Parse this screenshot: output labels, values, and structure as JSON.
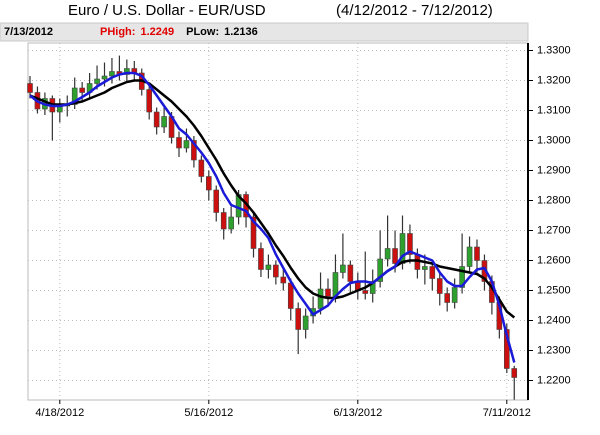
{
  "chart_data": {
    "type": "candlestick",
    "title": "Euro / U.S. Dollar -  EUR/USD",
    "date_range": "(4/12/2012 - 7/12/2012)",
    "info": {
      "date": "7/13/2012",
      "items": [
        {
          "label": "PHigh:",
          "value": "1.2249",
          "color": "#e00000"
        },
        {
          "label": "PLow:",
          "value": "1.2136",
          "color": "#000000"
        }
      ]
    },
    "categories": [
      null,
      null,
      null,
      null,
      "4/18/2012",
      null,
      null,
      null,
      null,
      null,
      null,
      null,
      null,
      null,
      null,
      null,
      null,
      null,
      null,
      null,
      null,
      null,
      null,
      null,
      "5/16/2012",
      null,
      null,
      null,
      null,
      null,
      null,
      null,
      null,
      null,
      null,
      null,
      null,
      null,
      null,
      null,
      null,
      null,
      null,
      null,
      "6/13/2012",
      null,
      null,
      null,
      null,
      null,
      null,
      null,
      null,
      null,
      null,
      null,
      null,
      null,
      null,
      null,
      null,
      null,
      null,
      null,
      "7/11/2012",
      null
    ],
    "open": [
      1.319,
      1.316,
      1.3105,
      1.314,
      1.3095,
      1.3115,
      1.312,
      1.3175,
      1.316,
      1.319,
      1.3205,
      1.3215,
      1.323,
      1.322,
      1.324,
      1.3225,
      1.317,
      1.3095,
      1.3045,
      1.308,
      1.301,
      1.2975,
      1.3,
      1.2935,
      1.288,
      1.2835,
      1.276,
      1.2705,
      1.2745,
      1.282,
      1.2745,
      1.264,
      1.257,
      1.2585,
      1.2545,
      1.2525,
      1.244,
      1.237,
      1.2415,
      1.244,
      1.2505,
      1.248,
      1.256,
      1.2585,
      1.253,
      1.25,
      1.249,
      1.253,
      1.2605,
      1.264,
      1.259,
      1.269,
      1.262,
      1.257,
      1.258,
      1.254,
      1.249,
      1.246,
      1.251,
      1.258,
      1.2645,
      1.26,
      1.253,
      1.246,
      1.237,
      1.224
    ],
    "high": [
      1.3215,
      1.318,
      1.316,
      1.315,
      1.314,
      1.315,
      1.321,
      1.3195,
      1.3225,
      1.325,
      1.326,
      1.3275,
      1.3283,
      1.327,
      1.3265,
      1.324,
      1.3185,
      1.311,
      1.312,
      1.3095,
      1.303,
      1.304,
      1.3015,
      1.295,
      1.29,
      1.285,
      1.2775,
      1.278,
      1.2835,
      1.283,
      1.276,
      1.266,
      1.262,
      1.26,
      1.258,
      1.254,
      1.246,
      1.244,
      1.248,
      1.256,
      1.254,
      1.262,
      1.269,
      1.26,
      1.256,
      1.263,
      1.257,
      1.27,
      1.275,
      1.27,
      1.275,
      1.272,
      1.264,
      1.262,
      1.26,
      1.256,
      1.251,
      1.254,
      1.269,
      1.268,
      1.267,
      1.262,
      1.255,
      1.248,
      1.239,
      1.2249
    ],
    "low": [
      1.314,
      1.309,
      1.3085,
      1.3,
      1.306,
      1.308,
      1.3105,
      1.313,
      1.314,
      1.317,
      1.318,
      1.319,
      1.32,
      1.3195,
      1.32,
      1.315,
      1.307,
      1.302,
      1.3025,
      1.299,
      1.2945,
      1.296,
      1.291,
      1.286,
      1.28,
      1.273,
      1.267,
      1.269,
      1.272,
      1.271,
      1.261,
      1.2545,
      1.254,
      1.252,
      1.25,
      1.24,
      1.2288,
      1.234,
      1.239,
      1.242,
      1.245,
      1.246,
      1.254,
      1.249,
      1.247,
      1.247,
      1.246,
      1.251,
      1.258,
      1.256,
      1.257,
      1.259,
      1.254,
      1.252,
      1.25,
      1.245,
      1.243,
      1.244,
      1.249,
      1.256,
      1.256,
      1.25,
      1.242,
      1.234,
      1.2225,
      1.2136
    ],
    "close": [
      1.316,
      1.3105,
      1.314,
      1.3095,
      1.3115,
      1.312,
      1.3175,
      1.316,
      1.319,
      1.3205,
      1.3215,
      1.323,
      1.322,
      1.324,
      1.3225,
      1.317,
      1.3095,
      1.3045,
      1.308,
      1.301,
      1.2975,
      1.3,
      1.2935,
      1.288,
      1.2835,
      1.276,
      1.2705,
      1.2745,
      1.282,
      1.2745,
      1.264,
      1.257,
      1.2585,
      1.2545,
      1.2525,
      1.244,
      1.237,
      1.2415,
      1.244,
      1.2505,
      1.248,
      1.256,
      1.2585,
      1.253,
      1.25,
      1.249,
      1.253,
      1.2605,
      1.264,
      1.259,
      1.269,
      1.262,
      1.257,
      1.258,
      1.254,
      1.249,
      1.246,
      1.251,
      1.258,
      1.2645,
      1.26,
      1.253,
      1.246,
      1.237,
      1.224,
      1.221
    ],
    "up_color": "#2ea02e",
    "down_color": "#cc1010",
    "overlays": [
      {
        "color": "#000000",
        "values": [
          1.315,
          1.314,
          1.313,
          1.312,
          1.312,
          1.312,
          1.3125,
          1.313,
          1.314,
          1.315,
          1.316,
          1.3175,
          1.3185,
          1.3195,
          1.32,
          1.32,
          1.319,
          1.317,
          1.315,
          1.313,
          1.3105,
          1.308,
          1.305,
          1.3015,
          1.2975,
          1.2935,
          1.289,
          1.285,
          1.2815,
          1.279,
          1.276,
          1.2725,
          1.269,
          1.265,
          1.2615,
          1.2575,
          1.254,
          1.251,
          1.249,
          1.248,
          1.2475,
          1.2475,
          1.248,
          1.249,
          1.25,
          1.251,
          1.2525,
          1.2545,
          1.2565,
          1.258,
          1.2595,
          1.26,
          1.26,
          1.2595,
          1.259,
          1.258,
          1.2575,
          1.257,
          1.2565,
          1.256,
          1.2555,
          1.254,
          1.251,
          1.247,
          1.243,
          1.241
        ]
      },
      {
        "color": "#1a1ad8",
        "values": [
          1.315,
          1.313,
          1.312,
          1.3115,
          1.3115,
          1.312,
          1.313,
          1.3145,
          1.316,
          1.318,
          1.3195,
          1.321,
          1.322,
          1.3225,
          1.3225,
          1.3215,
          1.3185,
          1.315,
          1.3115,
          1.308,
          1.304,
          1.302,
          1.299,
          1.296,
          1.2925,
          1.288,
          1.2825,
          1.2785,
          1.2775,
          1.2765,
          1.273,
          1.2705,
          1.2675,
          1.262,
          1.2575,
          1.253,
          1.249,
          1.2455,
          1.242,
          1.2435,
          1.245,
          1.248,
          1.2505,
          1.2525,
          1.253,
          1.253,
          1.2525,
          1.2545,
          1.2565,
          1.258,
          1.2615,
          1.263,
          1.262,
          1.261,
          1.26,
          1.256,
          1.253,
          1.2515,
          1.2515,
          1.2545,
          1.257,
          1.2575,
          1.253,
          1.245,
          1.235,
          1.226
        ]
      }
    ],
    "ylim": [
      1.2135,
      1.3325
    ],
    "yticks": [
      {
        "value": 1.22,
        "label": "1.2200"
      },
      {
        "value": 1.23,
        "label": "1.2300"
      },
      {
        "value": 1.24,
        "label": "1.2400"
      },
      {
        "value": 1.25,
        "label": "1.2500"
      },
      {
        "value": 1.26,
        "label": "1.2600"
      },
      {
        "value": 1.27,
        "label": "1.2700"
      },
      {
        "value": 1.28,
        "label": "1.2800"
      },
      {
        "value": 1.29,
        "label": "1.2900"
      },
      {
        "value": 1.3,
        "label": "1.3000"
      },
      {
        "value": 1.31,
        "label": "1.3100"
      },
      {
        "value": 1.32,
        "label": "1.3200"
      },
      {
        "value": 1.33,
        "label": "1.3300"
      }
    ],
    "grid": true
  }
}
